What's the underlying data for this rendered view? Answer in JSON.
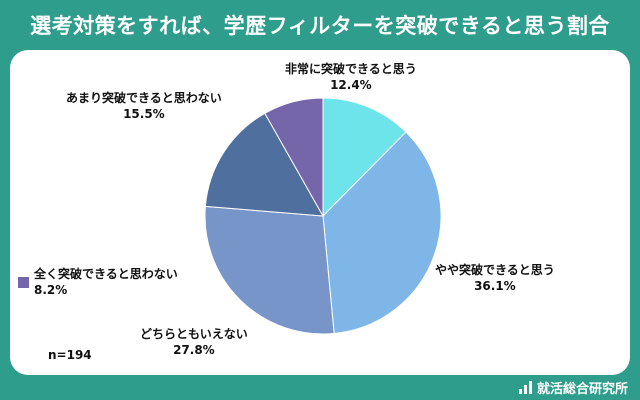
{
  "header": {
    "title": "選考対策をすれば、学歴フィルターを突破できると思う割合"
  },
  "chart_data": {
    "type": "pie",
    "title": "選考対策をすれば、学歴フィルターを突破できると思う割合",
    "slices": [
      {
        "label": "非常に突破できると思う",
        "value": 12.4,
        "display": "12.4%",
        "color": "#6de3ea"
      },
      {
        "label": "やや突破できると思う",
        "value": 36.1,
        "display": "36.1%",
        "color": "#7fb6e8"
      },
      {
        "label": "どちらともいえない",
        "value": 27.8,
        "display": "27.8%",
        "color": "#7895c9"
      },
      {
        "label": "あまり突破できると思わない",
        "value": 15.5,
        "display": "15.5%",
        "color": "#4f6f9e"
      },
      {
        "label": "全く突破できると思わない",
        "value": 8.2,
        "display": "8.2%",
        "color": "#7565a9"
      }
    ],
    "start_angle_deg": 0,
    "direction": "clockwise",
    "legend_placement": "none"
  },
  "sample": {
    "n_label": "n=194"
  },
  "footer": {
    "brand": "就活総合研究所"
  }
}
